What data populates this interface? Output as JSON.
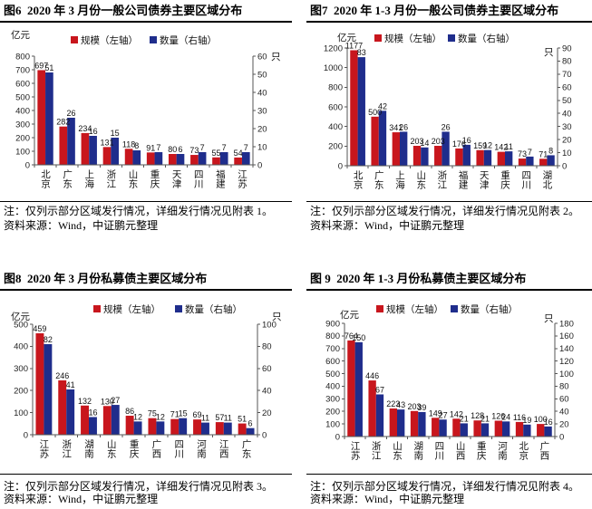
{
  "chart_data": [
    {
      "type": "bar",
      "title": "图6  2020 年 3 月份一般公司债券主要区域分布",
      "ylabel": "亿元",
      "y2label": "只",
      "ylim": [
        0,
        800
      ],
      "y2lim": [
        0,
        60
      ],
      "yticks": [
        0,
        100,
        200,
        300,
        400,
        500,
        600,
        700,
        800
      ],
      "y2ticks": [
        0,
        10,
        20,
        30,
        40,
        50,
        60
      ],
      "legend": "top",
      "grid": false,
      "categories": [
        "北京",
        "广东",
        "上海",
        "浙江",
        "山东",
        "重庆",
        "天津",
        "四川",
        "福建",
        "江苏"
      ],
      "series": [
        {
          "name": "规模（左轴）",
          "color": "#c8161d",
          "values": [
            697,
            282,
            234,
            131,
            118,
            91,
            80,
            73,
            55,
            54
          ]
        },
        {
          "name": "数量（右轴）",
          "color": "#1f2d8c",
          "values": [
            51,
            26,
            16,
            15,
            8,
            7,
            6,
            7,
            7,
            7
          ]
        }
      ],
      "note": "注：仅列示部分区域发行情况，详细发行情况见附表 1。",
      "source": "资料来源：Wind，中证鹏元整理"
    },
    {
      "type": "bar",
      "title": "图7  2020 年 1-3 月份一般公司债券主要区域分布",
      "ylabel": "亿元",
      "y2label": "只",
      "ylim": [
        0,
        1200
      ],
      "y2lim": [
        0,
        90
      ],
      "yticks": [
        0,
        200,
        400,
        600,
        800,
        1000,
        1200
      ],
      "y2ticks": [
        0,
        10,
        20,
        30,
        40,
        50,
        60,
        70,
        80,
        90
      ],
      "legend": "top",
      "grid": false,
      "categories": [
        "北京",
        "广东",
        "上海",
        "山东",
        "浙江",
        "福建",
        "天津",
        "重庆",
        "四川",
        "湖北"
      ],
      "series": [
        {
          "name": "规模（左轴）",
          "color": "#c8161d",
          "values": [
            1177,
            500,
            341,
            203,
            203,
            176,
            159,
            142,
            73,
            71
          ]
        },
        {
          "name": "数量（右轴）",
          "color": "#1f2d8c",
          "values": [
            83,
            42,
            26,
            14,
            26,
            16,
            12,
            11,
            7,
            8
          ]
        }
      ],
      "note": "注：仅列示部分区域发行情况，详细发行情况见附表 2。",
      "source": "资料来源：Wind，中证鹏元整理"
    },
    {
      "type": "bar",
      "title": "图8  2020 年 3 月份私募债主要区域分布",
      "ylabel": "亿元",
      "y2label": "只",
      "ylim": [
        0,
        500
      ],
      "y2lim": [
        0,
        100
      ],
      "yticks": [
        0,
        100,
        200,
        300,
        400,
        500
      ],
      "y2ticks": [
        0,
        20,
        40,
        60,
        80,
        100
      ],
      "legend": "top",
      "grid": false,
      "categories": [
        "江苏",
        "浙江",
        "湖南",
        "山东",
        "重庆",
        "广西",
        "四川",
        "河南",
        "江西",
        "广东"
      ],
      "series": [
        {
          "name": "规模（左轴）",
          "color": "#c8161d",
          "values": [
            459,
            246,
            132,
            130,
            86,
            75,
            71,
            69,
            57,
            51
          ]
        },
        {
          "name": "数量（右轴）",
          "color": "#1f2d8c",
          "values": [
            82,
            41,
            16,
            27,
            12,
            12,
            15,
            11,
            11,
            6
          ]
        }
      ],
      "note": "注：仅列示部分区域发行情况，详细发行情况见附表 3。",
      "source": "资料来源：Wind，中证鹏元整理"
    },
    {
      "type": "bar",
      "title": "图 9  2020 年 1-3 月份私募债主要区域分布",
      "ylabel": "亿元",
      "y2label": "只",
      "ylim": [
        0,
        900
      ],
      "y2lim": [
        0,
        180
      ],
      "yticks": [
        0,
        100,
        200,
        300,
        400,
        500,
        600,
        700,
        800,
        900
      ],
      "y2ticks": [
        0,
        20,
        40,
        60,
        80,
        100,
        120,
        140,
        160,
        180
      ],
      "legend": "top",
      "grid": false,
      "categories": [
        "江苏",
        "浙江",
        "山东",
        "湖南",
        "四川",
        "山西",
        "重庆",
        "河南",
        "北京",
        "广西"
      ],
      "series": [
        {
          "name": "规模（左轴）",
          "color": "#c8161d",
          "values": [
            764,
            446,
            223,
            203,
            149,
            142,
            128,
            126,
            116,
            100
          ]
        },
        {
          "name": "数量（右轴）",
          "color": "#1f2d8c",
          "values": [
            150,
            67,
            43,
            39,
            27,
            21,
            21,
            24,
            19,
            16
          ]
        }
      ],
      "note": "注：仅列示部分区域发行情况，详细发行情况见附表 4。",
      "source": "资料来源：Wind，中证鹏元整理"
    }
  ]
}
